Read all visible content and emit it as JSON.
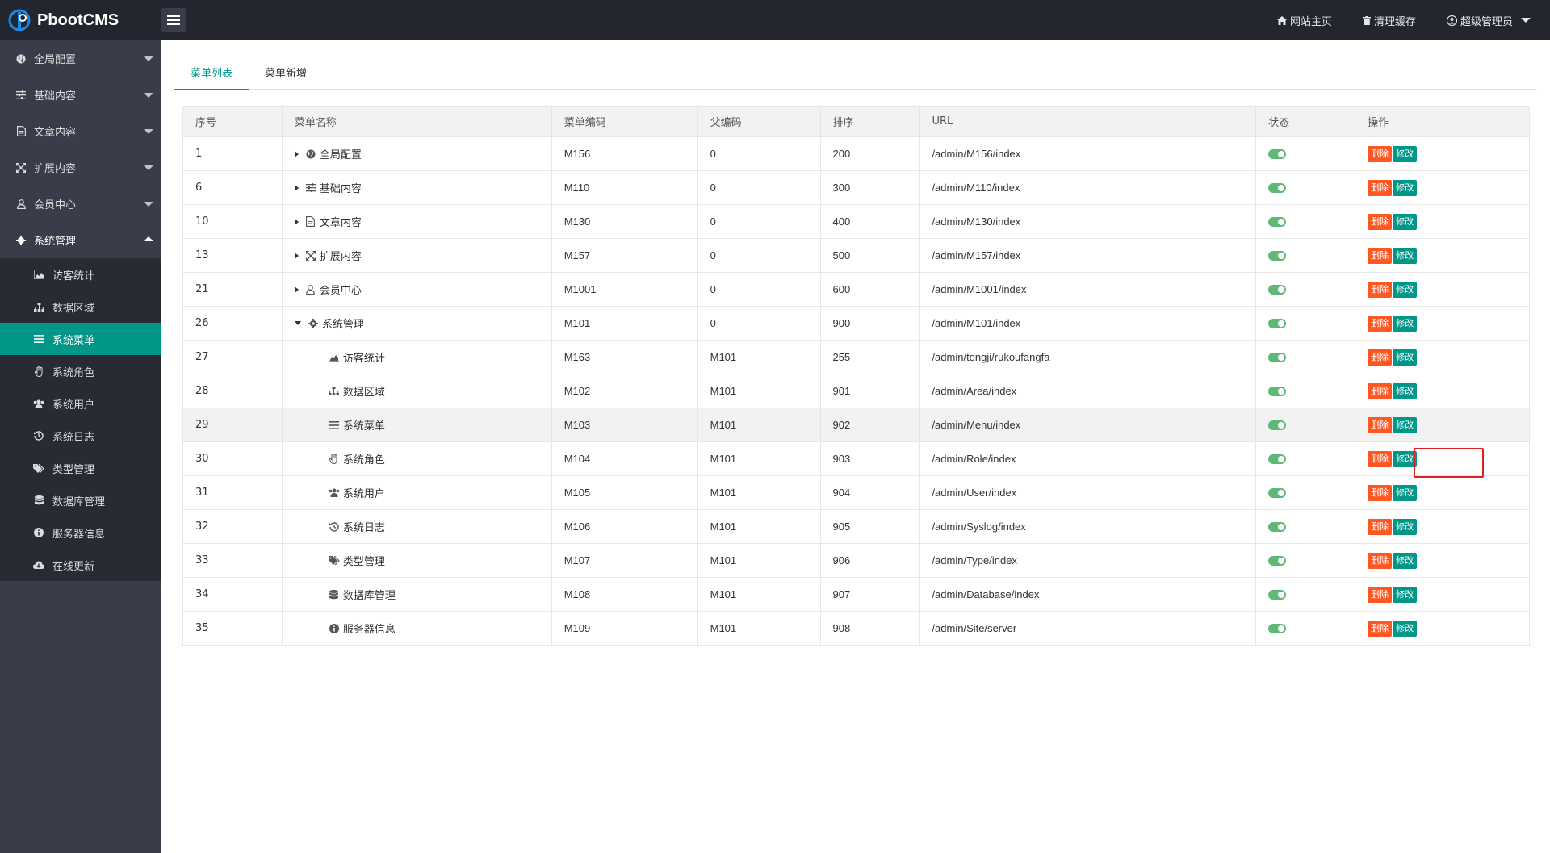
{
  "header": {
    "app_name": "PbootCMS",
    "links": [
      {
        "label": "网站主页",
        "icon": "home-icon"
      },
      {
        "label": "清理缓存",
        "icon": "trash-icon"
      },
      {
        "label": "超级管理员",
        "icon": "user-circle-icon"
      }
    ]
  },
  "sidebar": {
    "groups": [
      {
        "label": "全局配置",
        "icon": "globe-icon",
        "open": false
      },
      {
        "label": "基础内容",
        "icon": "sliders-icon",
        "open": false
      },
      {
        "label": "文章内容",
        "icon": "file-text-icon",
        "open": false
      },
      {
        "label": "扩展内容",
        "icon": "expand-icon",
        "open": false
      },
      {
        "label": "会员中心",
        "icon": "user-icon",
        "open": false
      },
      {
        "label": "系统管理",
        "icon": "gear-icon",
        "open": true
      }
    ],
    "sub_items": [
      {
        "label": "访客统计",
        "icon": "area-chart-icon"
      },
      {
        "label": "数据区域",
        "icon": "sitemap-icon"
      },
      {
        "label": "系统菜单",
        "icon": "bars-icon",
        "active": true
      },
      {
        "label": "系统角色",
        "icon": "hand-icon"
      },
      {
        "label": "系统用户",
        "icon": "users-icon"
      },
      {
        "label": "系统日志",
        "icon": "history-icon"
      },
      {
        "label": "类型管理",
        "icon": "tags-icon"
      },
      {
        "label": "数据库管理",
        "icon": "database-icon"
      },
      {
        "label": "服务器信息",
        "icon": "info-circle-icon"
      },
      {
        "label": "在线更新",
        "icon": "cloud-download-icon"
      }
    ]
  },
  "tabs": [
    {
      "label": "菜单列表",
      "active": true
    },
    {
      "label": "菜单新增",
      "active": false
    }
  ],
  "table": {
    "headers": [
      "序号",
      "菜单名称",
      "菜单编码",
      "父编码",
      "排序",
      "URL",
      "状态",
      "操作"
    ],
    "delete_label": "删除",
    "edit_label": "修改",
    "rows": [
      {
        "id": "1",
        "name": "全局配置",
        "icon": "globe-icon",
        "level": 0,
        "expander": "right",
        "code": "M156",
        "parent": "0",
        "sort": "200",
        "url": "/admin/M156/index",
        "status": "on"
      },
      {
        "id": "6",
        "name": "基础内容",
        "icon": "sliders-icon",
        "level": 0,
        "expander": "right",
        "code": "M110",
        "parent": "0",
        "sort": "300",
        "url": "/admin/M110/index",
        "status": "on"
      },
      {
        "id": "10",
        "name": "文章内容",
        "icon": "file-text-icon",
        "level": 0,
        "expander": "right",
        "code": "M130",
        "parent": "0",
        "sort": "400",
        "url": "/admin/M130/index",
        "status": "on"
      },
      {
        "id": "13",
        "name": "扩展内容",
        "icon": "expand-icon",
        "level": 0,
        "expander": "right",
        "code": "M157",
        "parent": "0",
        "sort": "500",
        "url": "/admin/M157/index",
        "status": "on"
      },
      {
        "id": "21",
        "name": "会员中心",
        "icon": "user-icon",
        "level": 0,
        "expander": "right",
        "code": "M1001",
        "parent": "0",
        "sort": "600",
        "url": "/admin/M1001/index",
        "status": "on"
      },
      {
        "id": "26",
        "name": "系统管理",
        "icon": "gear-icon",
        "level": 0,
        "expander": "down",
        "code": "M101",
        "parent": "0",
        "sort": "900",
        "url": "/admin/M101/index",
        "status": "on"
      },
      {
        "id": "27",
        "name": "访客统计",
        "icon": "area-chart-icon",
        "level": 1,
        "expander": "",
        "code": "M163",
        "parent": "M101",
        "sort": "255",
        "url": "/admin/tongji/rukoufangfa",
        "status": "on"
      },
      {
        "id": "28",
        "name": "数据区域",
        "icon": "sitemap-icon",
        "level": 1,
        "expander": "",
        "code": "M102",
        "parent": "M101",
        "sort": "901",
        "url": "/admin/Area/index",
        "status": "on"
      },
      {
        "id": "29",
        "name": "系统菜单",
        "icon": "bars-icon",
        "level": 1,
        "expander": "",
        "code": "M103",
        "parent": "M101",
        "sort": "902",
        "url": "/admin/Menu/index",
        "status": "on",
        "highlight": true
      },
      {
        "id": "30",
        "name": "系统角色",
        "icon": "hand-icon",
        "level": 1,
        "expander": "",
        "code": "M104",
        "parent": "M101",
        "sort": "903",
        "url": "/admin/Role/index",
        "status": "on"
      },
      {
        "id": "31",
        "name": "系统用户",
        "icon": "users-icon",
        "level": 1,
        "expander": "",
        "code": "M105",
        "parent": "M101",
        "sort": "904",
        "url": "/admin/User/index",
        "status": "on"
      },
      {
        "id": "32",
        "name": "系统日志",
        "icon": "history-icon",
        "level": 1,
        "expander": "",
        "code": "M106",
        "parent": "M101",
        "sort": "905",
        "url": "/admin/Syslog/index",
        "status": "on"
      },
      {
        "id": "33",
        "name": "类型管理",
        "icon": "tags-icon",
        "level": 1,
        "expander": "",
        "code": "M107",
        "parent": "M101",
        "sort": "906",
        "url": "/admin/Type/index",
        "status": "on"
      },
      {
        "id": "34",
        "name": "数据库管理",
        "icon": "database-icon",
        "level": 1,
        "expander": "",
        "code": "M108",
        "parent": "M101",
        "sort": "907",
        "url": "/admin/Database/index",
        "status": "on"
      },
      {
        "id": "35",
        "name": "服务器信息",
        "icon": "info-circle-icon",
        "level": 1,
        "expander": "",
        "code": "M109",
        "parent": "M101",
        "sort": "908",
        "url": "/admin/Site/server",
        "status": "on"
      }
    ]
  },
  "colors": {
    "header_bg": "#23262e",
    "sidebar_bg": "#393d49",
    "submenu_bg": "#282b33",
    "accent": "#009688",
    "toggle_on": "#5fb878",
    "delete_btn": "#ff5722",
    "highlight_border": "#e02020"
  }
}
